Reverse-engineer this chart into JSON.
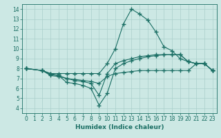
{
  "xlabel": "Humidex (Indice chaleur)",
  "xlim": [
    -0.5,
    23.5
  ],
  "ylim": [
    3.5,
    14.5
  ],
  "xticks": [
    0,
    1,
    2,
    3,
    4,
    5,
    6,
    7,
    8,
    9,
    10,
    11,
    12,
    13,
    14,
    15,
    16,
    17,
    18,
    19,
    20,
    21,
    22,
    23
  ],
  "yticks": [
    4,
    5,
    6,
    7,
    8,
    9,
    10,
    11,
    12,
    13,
    14
  ],
  "background_color": "#cce8e4",
  "grid_color": "#aacfcb",
  "line_color": "#1a6e64",
  "lines": [
    {
      "x": [
        0,
        2,
        3,
        4,
        5,
        6,
        7,
        8,
        9,
        10,
        11,
        12,
        13,
        14,
        15,
        16,
        17,
        18,
        19,
        20,
        21,
        22,
        23
      ],
      "y": [
        8.0,
        7.8,
        7.5,
        7.5,
        7.5,
        7.5,
        7.5,
        7.5,
        7.5,
        8.5,
        10.0,
        12.5,
        14.0,
        13.5,
        12.9,
        11.7,
        10.2,
        9.8,
        9.0,
        8.7,
        8.5,
        8.5,
        7.8
      ]
    },
    {
      "x": [
        0,
        2,
        3,
        4,
        5,
        6,
        7,
        8,
        9,
        10,
        11,
        12,
        13,
        14,
        15,
        16,
        17,
        18,
        19,
        20,
        21,
        22,
        23
      ],
      "y": [
        8.0,
        7.8,
        7.5,
        7.3,
        7.0,
        6.8,
        6.7,
        6.5,
        5.3,
        7.5,
        8.5,
        8.8,
        9.0,
        9.2,
        9.3,
        9.4,
        9.4,
        9.4,
        9.4,
        8.7,
        8.5,
        8.5,
        7.8
      ]
    },
    {
      "x": [
        0,
        2,
        3,
        4,
        5,
        6,
        7,
        8,
        9,
        10,
        11,
        12,
        13,
        14,
        15,
        16,
        17,
        18,
        19,
        20,
        21,
        22,
        23
      ],
      "y": [
        8.0,
        7.8,
        7.4,
        7.3,
        6.6,
        6.5,
        6.3,
        6.0,
        4.3,
        5.5,
        8.0,
        8.5,
        8.8,
        9.0,
        9.2,
        9.3,
        9.4,
        9.4,
        9.4,
        8.7,
        8.5,
        8.5,
        7.8
      ]
    },
    {
      "x": [
        0,
        2,
        3,
        4,
        5,
        6,
        7,
        8,
        9,
        10,
        11,
        12,
        13,
        14,
        15,
        16,
        17,
        18,
        19,
        20,
        21,
        22,
        23
      ],
      "y": [
        8.0,
        7.8,
        7.3,
        7.2,
        7.0,
        6.9,
        6.8,
        6.7,
        6.5,
        7.2,
        7.5,
        7.6,
        7.7,
        7.8,
        7.8,
        7.8,
        7.8,
        7.8,
        7.8,
        7.8,
        8.5,
        8.5,
        7.8
      ]
    }
  ]
}
